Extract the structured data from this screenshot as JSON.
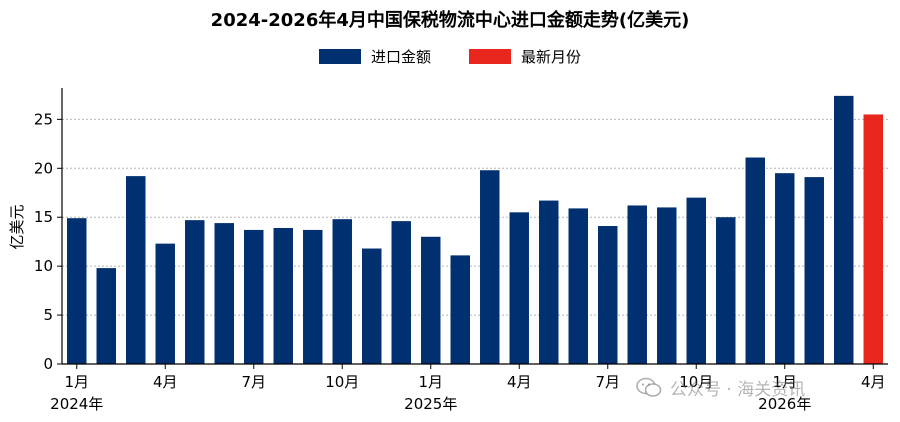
{
  "chart_data": {
    "type": "bar",
    "title": "2024-2026年4月中国保税物流中心进口金额走势(亿美元)",
    "ylabel": "亿美元",
    "xlabel": "",
    "ylim": [
      0,
      28
    ],
    "yticks": [
      0,
      5,
      10,
      15,
      20,
      25
    ],
    "grid": "horizontal dotted",
    "legend_position": "top-center",
    "categories": [
      "2024-01",
      "2024-02",
      "2024-03",
      "2024-04",
      "2024-05",
      "2024-06",
      "2024-07",
      "2024-08",
      "2024-09",
      "2024-10",
      "2024-11",
      "2024-12",
      "2025-01",
      "2025-02",
      "2025-03",
      "2025-04",
      "2025-05",
      "2025-06",
      "2025-07",
      "2025-08",
      "2025-09",
      "2025-10",
      "2025-11",
      "2025-12",
      "2026-01",
      "2026-02",
      "2026-03",
      "2026-04"
    ],
    "values": [
      14.9,
      9.8,
      19.2,
      12.3,
      14.7,
      14.4,
      13.7,
      13.9,
      13.7,
      14.8,
      11.8,
      14.6,
      13.0,
      11.1,
      19.8,
      15.5,
      16.7,
      15.9,
      14.1,
      16.2,
      16.0,
      17.0,
      15.0,
      21.1,
      19.5,
      19.1,
      27.4,
      25.5
    ],
    "highlight_index": 27,
    "series": [
      {
        "name": "进口金额",
        "color": "#003070"
      },
      {
        "name": "最新月份",
        "color": "#e8261e"
      }
    ],
    "x_tick_labels": [
      {
        "index": 0,
        "month": "1月",
        "year": "2024年"
      },
      {
        "index": 3,
        "month": "4月",
        "year": ""
      },
      {
        "index": 6,
        "month": "7月",
        "year": ""
      },
      {
        "index": 9,
        "month": "10月",
        "year": ""
      },
      {
        "index": 12,
        "month": "1月",
        "year": "2025年"
      },
      {
        "index": 15,
        "month": "4月",
        "year": ""
      },
      {
        "index": 18,
        "month": "7月",
        "year": ""
      },
      {
        "index": 21,
        "month": "10月",
        "year": ""
      },
      {
        "index": 24,
        "month": "1月",
        "year": "2026年"
      },
      {
        "index": 27,
        "month": "4月",
        "year": ""
      }
    ]
  },
  "watermark": {
    "text": "公众号 · 海关资讯"
  }
}
